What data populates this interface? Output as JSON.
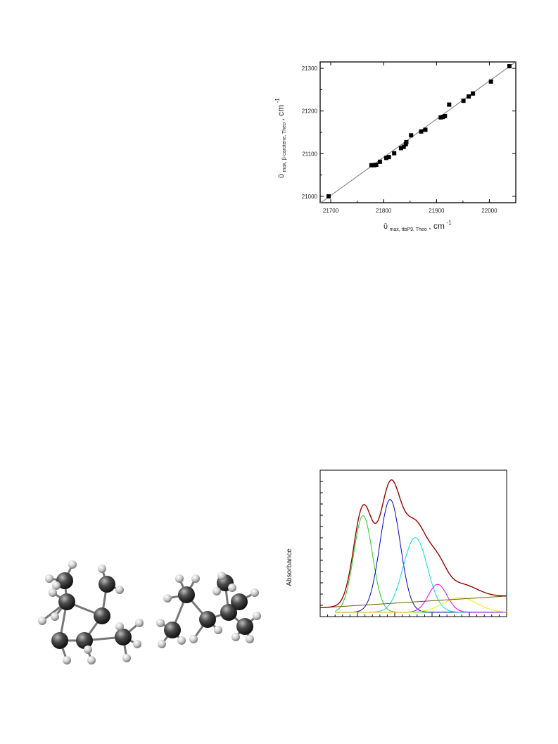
{
  "scatter_chart": {
    "xlabel": {
      "sym": "ῡ",
      "sub": "max, ttbP9, Theo",
      "unit": ", cm",
      "sup": "-1"
    },
    "ylabel": {
      "sym": "ῡ",
      "sub": "max, β-carotene, Theo",
      "unit": ", cm",
      "sup": "-1"
    }
  },
  "absorbance_chart": {
    "ylabel": "Absorbance"
  },
  "chart_data": [
    {
      "type": "scatter",
      "title": "",
      "xlim": [
        21680,
        22050
      ],
      "ylim": [
        20985,
        21315
      ],
      "xticks": [
        21700,
        21800,
        21900,
        22000
      ],
      "yticks": [
        21000,
        21100,
        21200,
        21300
      ],
      "points": [
        [
          21696,
          21000
        ],
        [
          21777,
          21073
        ],
        [
          21782,
          21073
        ],
        [
          21786,
          21074
        ],
        [
          21793,
          21081
        ],
        [
          21805,
          21090
        ],
        [
          21810,
          21092
        ],
        [
          21820,
          21101
        ],
        [
          21833,
          21113
        ],
        [
          21838,
          21116
        ],
        [
          21842,
          21122
        ],
        [
          21843,
          21127
        ],
        [
          21852,
          21143
        ],
        [
          21871,
          21152
        ],
        [
          21879,
          21156
        ],
        [
          21908,
          21185
        ],
        [
          21912,
          21186
        ],
        [
          21916,
          21188
        ],
        [
          21924,
          21215
        ],
        [
          21951,
          21224
        ],
        [
          21961,
          21234
        ],
        [
          21969,
          21241
        ],
        [
          22003,
          21269
        ],
        [
          22038,
          21305
        ]
      ],
      "fit_line": {
        "x": [
          21680,
          22050
        ],
        "y": [
          20984,
          21315
        ]
      },
      "colors": {
        "marker": "#000000",
        "line": "#777777"
      },
      "grid": false
    },
    {
      "type": "line",
      "title": "",
      "xlabel": "",
      "ylabel": "Absorbance",
      "xlim": [
        0,
        100
      ],
      "ylim": [
        0,
        100
      ],
      "envelope": {
        "color": "#990000"
      },
      "baseline": {
        "color": "#6b5b00",
        "x": [
          0,
          100
        ],
        "y": [
          6,
          14
        ]
      },
      "series": [
        {
          "color": "#22cc22",
          "center": 23,
          "amplitude": 66,
          "width": 5
        },
        {
          "color": "#0000cc",
          "center": 37.5,
          "amplitude": 77,
          "width": 5.5
        },
        {
          "color": "#00dddd",
          "center": 51,
          "amplitude": 51,
          "width": 6.5
        },
        {
          "color": "#ee00ee",
          "center": 63,
          "amplitude": 19,
          "width": 5
        },
        {
          "color": "#eeee00",
          "center": 75,
          "amplitude": 10,
          "width": 9
        }
      ]
    }
  ]
}
